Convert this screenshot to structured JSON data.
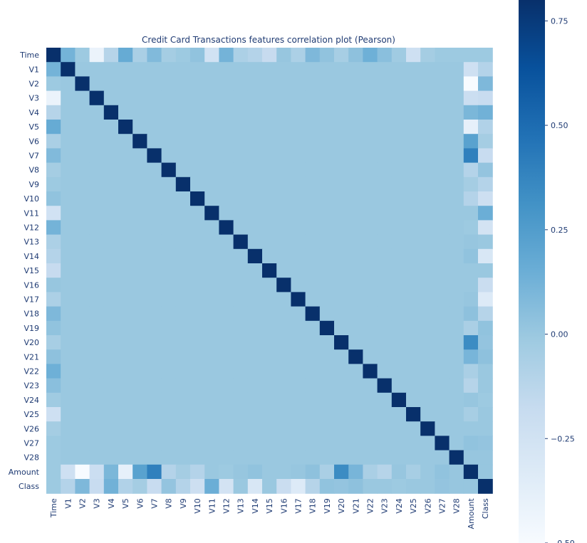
{
  "chart_data": {
    "type": "heatmap",
    "title": "Credit Card Transactions features correlation plot (Pearson)",
    "xlabel": "",
    "ylabel": "",
    "colormap": "Blues",
    "vmin": -0.5,
    "vmax": 0.8,
    "colorbar_ticks": [
      0.75,
      0.5,
      0.25,
      0.0,
      -0.25,
      -0.5
    ],
    "colorbar_tick_labels": [
      "0.75",
      "0.50",
      "0.25",
      "0.00",
      "−0.25",
      "−0.50"
    ],
    "labels": [
      "Time",
      "V1",
      "V2",
      "V3",
      "V4",
      "V5",
      "V6",
      "V7",
      "V8",
      "V9",
      "V10",
      "V11",
      "V12",
      "V13",
      "V14",
      "V15",
      "V16",
      "V17",
      "V18",
      "V19",
      "V20",
      "V21",
      "V22",
      "V23",
      "V24",
      "V25",
      "V26",
      "V27",
      "V28",
      "Amount",
      "Class"
    ],
    "diagonal": 1.0,
    "off_diagonal_default": 0.0,
    "time_correlations": [
      1.0,
      0.12,
      -0.01,
      -0.42,
      -0.11,
      0.17,
      -0.06,
      0.08,
      -0.04,
      -0.01,
      0.03,
      -0.25,
      0.12,
      -0.07,
      -0.1,
      -0.18,
      0.01,
      -0.07,
      0.09,
      0.03,
      -0.05,
      0.04,
      0.14,
      0.05,
      -0.02,
      -0.23,
      -0.04,
      -0.01,
      -0.01,
      -0.01,
      -0.01
    ],
    "amount_correlations": [
      -0.01,
      -0.23,
      -0.53,
      -0.21,
      0.1,
      -0.39,
      0.22,
      0.4,
      -0.1,
      -0.04,
      -0.1,
      0.0,
      -0.01,
      0.01,
      0.03,
      -0.0,
      -0.0,
      0.01,
      0.04,
      -0.06,
      0.34,
      0.11,
      -0.06,
      -0.11,
      0.01,
      -0.05,
      -0.0,
      0.03,
      0.01,
      1.0,
      0.01
    ],
    "class_correlations": [
      -0.01,
      -0.1,
      0.09,
      -0.19,
      0.13,
      -0.09,
      -0.04,
      -0.19,
      0.02,
      -0.1,
      -0.22,
      0.15,
      -0.26,
      -0.0,
      -0.3,
      -0.0,
      -0.2,
      -0.33,
      -0.11,
      0.03,
      0.02,
      0.04,
      0.0,
      -0.0,
      -0.01,
      0.0,
      0.0,
      0.02,
      0.01,
      0.01,
      1.0
    ]
  }
}
